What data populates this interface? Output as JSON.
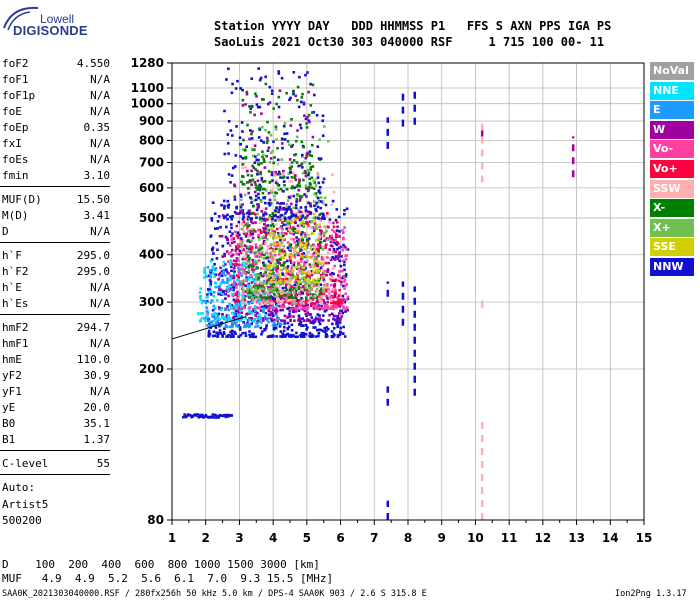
{
  "logo": {
    "line1": "Lowell",
    "line2": "DIGISONDE"
  },
  "header": {
    "line1": "Station YYYY DAY   DDD HHMMSS P1   FFS S AXN PPS IGA PS",
    "line2": "SaoLuis 2021 Oct30 303 040000 RSF     1 715 100 00- 11"
  },
  "params": [
    {
      "k": "foF2",
      "v": "4.550"
    },
    {
      "k": "foF1",
      "v": "N/A"
    },
    {
      "k": "foF1p",
      "v": "N/A"
    },
    {
      "k": "foE",
      "v": "N/A"
    },
    {
      "k": "foEp",
      "v": "0.35"
    },
    {
      "k": "fxI",
      "v": "N/A"
    },
    {
      "k": "foEs",
      "v": "N/A"
    },
    {
      "k": "fmin",
      "v": "3.10"
    },
    {
      "k": "MUF(D)",
      "v": "15.50"
    },
    {
      "k": "M(D)",
      "v": "3.41"
    },
    {
      "k": "D",
      "v": "N/A"
    },
    {
      "k": "h`F",
      "v": "295.0"
    },
    {
      "k": "h`F2",
      "v": "295.0"
    },
    {
      "k": "h`E",
      "v": "N/A"
    },
    {
      "k": "h`Es",
      "v": "N/A"
    },
    {
      "k": "hmF2",
      "v": "294.7"
    },
    {
      "k": "hmF1",
      "v": "N/A"
    },
    {
      "k": "hmE",
      "v": "110.0"
    },
    {
      "k": "yF2",
      "v": "30.9"
    },
    {
      "k": "yF1",
      "v": "N/A"
    },
    {
      "k": "yE",
      "v": "20.0"
    },
    {
      "k": "B0",
      "v": "35.1"
    },
    {
      "k": "B1",
      "v": "1.37"
    },
    {
      "k": "C-level",
      "v": "55"
    }
  ],
  "auto": {
    "line1": "Auto:",
    "line2": "Artist5",
    "line3": "500200"
  },
  "legend": [
    {
      "label": "NoVal",
      "color": "#a0a0a0"
    },
    {
      "label": "NNE",
      "color": "#00e5ff"
    },
    {
      "label": "E",
      "color": "#1e9bff"
    },
    {
      "label": "W",
      "color": "#a000a0"
    },
    {
      "label": "Vo-",
      "color": "#ff40a0"
    },
    {
      "label": "Vo+",
      "color": "#ff0040"
    },
    {
      "label": "SSW",
      "color": "#ffb0b0"
    },
    {
      "label": "X-",
      "color": "#008000"
    },
    {
      "label": "X+",
      "color": "#70c050"
    },
    {
      "label": "SSE",
      "color": "#d0d000"
    },
    {
      "label": "NNW",
      "color": "#1010d0"
    }
  ],
  "bottom": {
    "d_line": "D    100  200  400  600  800 1000 1500 3000 [km]",
    "muf_line": "MUF   4.9  4.9  5.2  5.6  6.1  7.0  9.3 15.5 [MHz]"
  },
  "footer": {
    "left": "SAA0K_2021303040000.RSF / 280fx256h 50 kHz 5.0 km / DPS-4 SAA0K 903 / 2.6 S 315.8 E",
    "right": "Ion2Png 1.3.17"
  },
  "chart_data": {
    "type": "scatter",
    "title": "",
    "xlabel": "",
    "ylabel": "",
    "xlim": [
      1,
      15
    ],
    "ylim": [
      80,
      1280
    ],
    "y_scale": "log",
    "x_ticks": [
      1,
      2,
      3,
      4,
      5,
      6,
      7,
      8,
      9,
      10,
      11,
      12,
      13,
      14,
      15
    ],
    "y_ticks": [
      80,
      200,
      300,
      400,
      500,
      600,
      700,
      800,
      900,
      1000,
      1100,
      1280
    ],
    "grid": true,
    "clusters": [
      {
        "name": "NNW",
        "color": "#1010d0",
        "x": [
          2.0,
          6.2
        ],
        "y": [
          245,
          560
        ],
        "count": 650
      },
      {
        "name": "W",
        "color": "#a000a0",
        "x": [
          2.3,
          6.0
        ],
        "y": [
          270,
          520
        ],
        "count": 350
      },
      {
        "name": "Vo-",
        "color": "#ff40a0",
        "x": [
          2.6,
          6.2
        ],
        "y": [
          290,
          480
        ],
        "count": 320
      },
      {
        "name": "Vo+",
        "color": "#ff0040",
        "x": [
          2.8,
          6.0
        ],
        "y": [
          300,
          520
        ],
        "count": 220
      },
      {
        "name": "E",
        "color": "#1e9bff",
        "x": [
          1.8,
          4.2
        ],
        "y": [
          260,
          380
        ],
        "count": 180
      },
      {
        "name": "NNE",
        "color": "#00e5ff",
        "x": [
          1.7,
          3.6
        ],
        "y": [
          270,
          390
        ],
        "count": 120
      },
      {
        "name": "X-",
        "color": "#008000",
        "x": [
          3.2,
          5.4
        ],
        "y": [
          310,
          800
        ],
        "count": 220
      },
      {
        "name": "X+",
        "color": "#70c050",
        "x": [
          3.0,
          5.6
        ],
        "y": [
          320,
          900
        ],
        "count": 200
      },
      {
        "name": "SSE",
        "color": "#d0d000",
        "x": [
          3.8,
          5.4
        ],
        "y": [
          340,
          520
        ],
        "count": 120
      },
      {
        "name": "SSW",
        "color": "#ffb0b0",
        "x": [
          3.0,
          5.8
        ],
        "y": [
          300,
          700
        ],
        "count": 160
      },
      {
        "name": "NoVal",
        "color": "#a0a0a0",
        "x": [
          3.0,
          5.0
        ],
        "y": [
          300,
          600
        ],
        "count": 60
      },
      {
        "name": "NNW-sparse",
        "color": "#1010d0",
        "x": [
          2.5,
          5.5
        ],
        "y": [
          500,
          1250
        ],
        "count": 220
      },
      {
        "name": "W-sparse",
        "color": "#a000a0",
        "x": [
          2.8,
          5.2
        ],
        "y": [
          520,
          1100
        ],
        "count": 90
      },
      {
        "name": "X-sparse",
        "color": "#008000",
        "x": [
          3.0,
          5.2
        ],
        "y": [
          600,
          1150
        ],
        "count": 90
      }
    ],
    "vertical_segments": [
      {
        "x": 7.4,
        "y": [
          760,
          920
        ],
        "color": "#1010d0"
      },
      {
        "x": 7.4,
        "y": [
          310,
          340
        ],
        "color": "#1010d0"
      },
      {
        "x": 7.4,
        "y": [
          160,
          180
        ],
        "color": "#1010d0"
      },
      {
        "x": 7.4,
        "y": [
          80,
          90
        ],
        "color": "#1010d0"
      },
      {
        "x": 7.85,
        "y": [
          870,
          1100
        ],
        "color": "#1010d0"
      },
      {
        "x": 7.85,
        "y": [
          260,
          340
        ],
        "color": "#1010d0"
      },
      {
        "x": 8.2,
        "y": [
          880,
          1080
        ],
        "color": "#1010d0"
      },
      {
        "x": 8.2,
        "y": [
          170,
          330
        ],
        "color": "#1010d0"
      },
      {
        "x": 10.2,
        "y": [
          620,
          900
        ],
        "color": "#ffb0b0"
      },
      {
        "x": 10.2,
        "y": [
          290,
          310
        ],
        "color": "#ffb0b0"
      },
      {
        "x": 10.2,
        "y": [
          80,
          150
        ],
        "color": "#ffb0b0"
      },
      {
        "x": 10.2,
        "y": [
          820,
          850
        ],
        "color": "#a000a0"
      },
      {
        "x": 12.9,
        "y": [
          640,
          820
        ],
        "color": "#a000a0"
      }
    ],
    "low_trace": {
      "name": "NNW",
      "color": "#1010d0",
      "x": [
        1.3,
        2.75
      ],
      "y": 152
    },
    "trace_line": {
      "color": "#000000",
      "x": [
        1.0,
        3.2
      ],
      "y": [
        240,
        275
      ]
    }
  }
}
